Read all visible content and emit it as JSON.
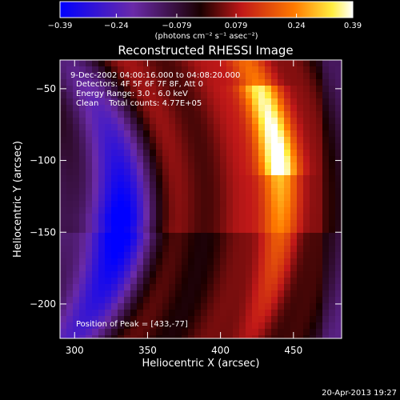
{
  "chart_data": {
    "type": "heatmap",
    "title": "Reconstructed RHESSI Image",
    "xlabel": "Heliocentric X (arcsec)",
    "ylabel": "Heliocentric Y (arcsec)",
    "xlim": [
      290,
      483
    ],
    "ylim": [
      -224,
      -30
    ],
    "xticks": [
      300,
      350,
      400,
      450
    ],
    "xtick_labels": [
      "300",
      "350",
      "400",
      "450"
    ],
    "yticks": [
      -50,
      -100,
      -150,
      -200
    ],
    "ytick_labels": [
      "−50",
      "−100",
      "−150",
      "−200"
    ],
    "colorbar": {
      "min": -0.39,
      "max": 0.39,
      "ticks": [
        -0.39,
        -0.24,
        -0.079,
        0.079,
        0.24,
        0.39
      ],
      "tick_labels": [
        "−0.39",
        "−0.24",
        "−0.079",
        "0.079",
        "0.24",
        "0.39"
      ],
      "unit_label": "(photons cm⁻² s⁻¹ asec⁻²)",
      "colors": [
        "#0000ff",
        "#7a2aa0",
        "#1a0000",
        "#c01818",
        "#ff7a00",
        "#ffff40",
        "#ffffff"
      ]
    },
    "annotations": {
      "time_range": "9-Dec-2002 04:00:16.000 to 04:08:20.000",
      "detectors": "Detectors: 4F 5F 6F 7F 8F, Att 0",
      "energy_range": "Energy Range: 3.0 - 6.0 keV",
      "method_counts": "Clean    Total counts: 4.77E+05",
      "peak": "Position of Peak = [433,-77]"
    },
    "peak_position": [
      433,
      -77
    ],
    "grid": false,
    "legend": "none"
  },
  "footer": {
    "date_stamp": "20-Apr-2013 19:27"
  },
  "colors": {
    "background": "#000000",
    "text": "#ffffff"
  }
}
